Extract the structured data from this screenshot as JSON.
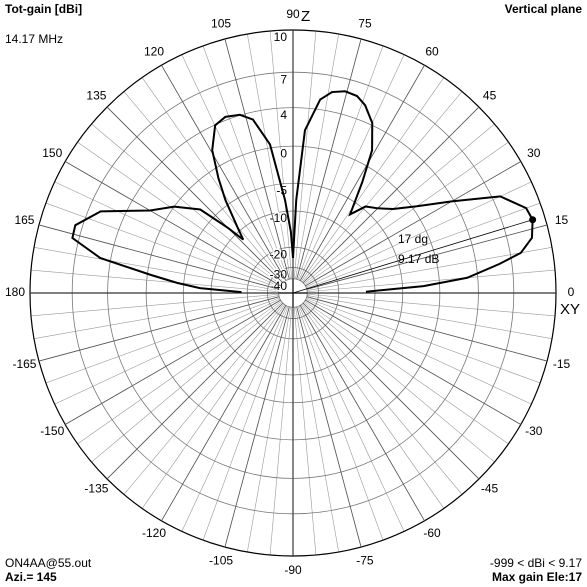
{
  "chart_data": {
    "type": "polar",
    "title": "Tot-gain [dBi]",
    "subtitle": "Vertical plane",
    "frequency": "14.17 MHz",
    "z_label": "Z",
    "xy_label": "XY",
    "scale": "arrl-log",
    "x": [
      1,
      3,
      5,
      8,
      10,
      13,
      17,
      20,
      25,
      30,
      35,
      40,
      45,
      50,
      54,
      58,
      61,
      65,
      69,
      72,
      75.5,
      79,
      82,
      85.8,
      88,
      90,
      92,
      94.9,
      98.8,
      103,
      106.6,
      111,
      114.9,
      119.5,
      123,
      126,
      130,
      133,
      135,
      138,
      144,
      150,
      157,
      162.7,
      166,
      169.7,
      172.8,
      175,
      177,
      179
    ],
    "values": [
      -12,
      -2,
      3,
      6,
      7.8,
      8.8,
      9.17,
      9.0,
      7.6,
      3.8,
      0.5,
      -2.0,
      -3.5,
      -4.5,
      -7.1,
      -2,
      1.8,
      4.2,
      5.4,
      5.9,
      6.0,
      5.7,
      4.9,
      1.8,
      -7.8,
      -24.6,
      -15,
      -7.8,
      0.4,
      3.3,
      4.05,
      4.3,
      3.95,
      1.9,
      -1.2,
      -4.2,
      -9,
      -12,
      -8,
      -2.8,
      0,
      2,
      6.05,
      7.55,
      7.5,
      4.95,
      -0.5,
      -4,
      -7.8,
      -18
    ],
    "color": "#000000",
    "ylim": [
      -40,
      10
    ],
    "yticks": [
      10,
      7,
      4,
      0,
      -5,
      -10,
      -20,
      -30,
      -40
    ],
    "xticks": [
      0,
      15,
      30,
      45,
      60,
      75,
      90,
      105,
      120,
      135,
      150,
      165,
      180,
      -165,
      -150,
      -135,
      -120,
      -105,
      -90,
      -75,
      -60,
      -45,
      -30,
      -15
    ],
    "grid": true,
    "max_marker": {
      "angle": {
        "value": 17,
        "label": "17 dg"
      },
      "gain": {
        "value": 9.17,
        "label": "9.17 dB"
      }
    },
    "file": "ON4AA@55.out",
    "azimuth": "Azi.= 145",
    "range_text": "-999 < dBi < 9.17",
    "max_text": "Max gain Ele:17"
  }
}
